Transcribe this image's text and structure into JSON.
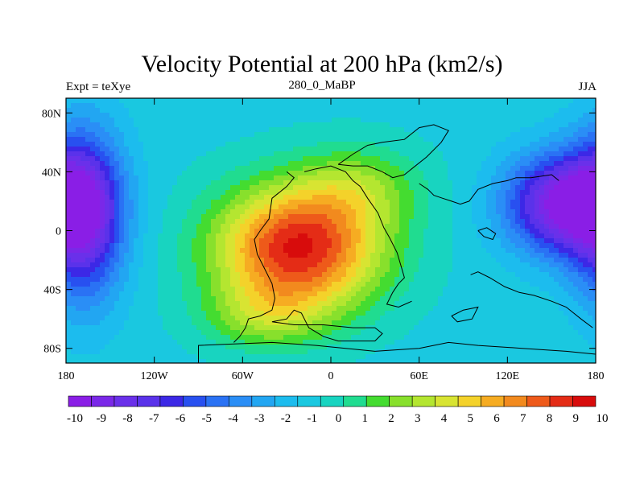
{
  "chart_data": {
    "type": "heatmap",
    "title": "Velocity Potential at 200 hPa (km2/s)",
    "left_string": "Expt = teXye",
    "center_string": "280_0_MaBP",
    "right_string": "JJA",
    "x_ticks": [
      "180",
      "120W",
      "60W",
      "0",
      "60E",
      "120E",
      "180"
    ],
    "y_ticks": [
      "80N",
      "40N",
      "0",
      "40S",
      "80S"
    ],
    "xlim": [
      -180,
      180
    ],
    "ylim": [
      -90,
      90
    ],
    "colorbar_labels": [
      "-10",
      "-9",
      "-8",
      "-7",
      "-6",
      "-5",
      "-4",
      "-3",
      "-2",
      "-1",
      "0",
      "1",
      "2",
      "3",
      "4",
      "5",
      "6",
      "7",
      "8",
      "9",
      "10"
    ],
    "colorbar_colors": [
      "#8a1ee6",
      "#7a28e8",
      "#6a30ea",
      "#5a32ea",
      "#3c28e6",
      "#2850f0",
      "#2a72f4",
      "#2a8ef6",
      "#22a6f2",
      "#1cbcee",
      "#1ac8e0",
      "#18d4c0",
      "#20dc90",
      "#44dc30",
      "#88e02c",
      "#b4e630",
      "#d8e432",
      "#f4d22a",
      "#f6ac22",
      "#f28a1e",
      "#ee5a1a",
      "#e42c16",
      "#d80c0c"
    ],
    "features": [
      {
        "label": "positive maximum",
        "lon": -20,
        "lat": -10,
        "value": 10
      },
      {
        "label": "negative minimum",
        "lon": 160,
        "lat": 20,
        "value": -9
      },
      {
        "label": "negative minimum",
        "lon": -165,
        "lat": 10,
        "value": -8
      }
    ]
  }
}
